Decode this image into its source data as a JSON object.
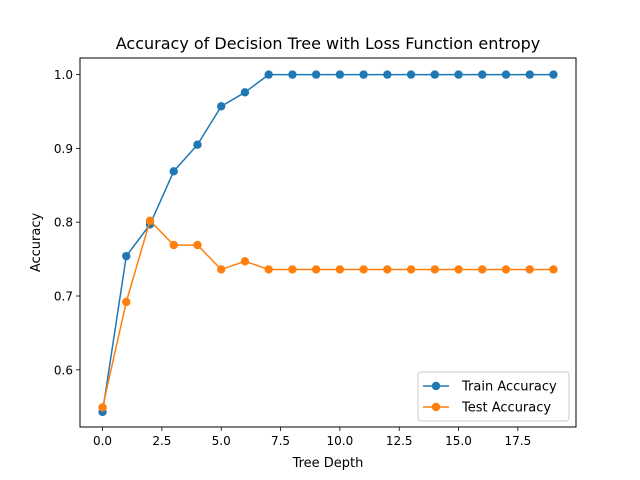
{
  "chart_data": {
    "type": "line",
    "title": "Accuracy of Decision Tree with Loss Function entropy",
    "xlabel": "Tree Depth",
    "ylabel": "Accuracy",
    "xlim": [
      -0.95,
      19.95
    ],
    "ylim": [
      0.5225,
      1.0225
    ],
    "xticks": [
      0.0,
      2.5,
      5.0,
      7.5,
      10.0,
      12.5,
      15.0,
      17.5
    ],
    "xtick_labels": [
      "0.0",
      "2.5",
      "5.0",
      "7.5",
      "10.0",
      "12.5",
      "15.0",
      "17.5"
    ],
    "yticks": [
      0.6,
      0.7,
      0.8,
      0.9,
      1.0
    ],
    "ytick_labels": [
      "0.6",
      "0.7",
      "0.8",
      "0.9",
      "1.0"
    ],
    "grid": false,
    "legend_position": "lower-right",
    "x": [
      0,
      1,
      2,
      3,
      4,
      5,
      6,
      7,
      8,
      9,
      10,
      11,
      12,
      13,
      14,
      15,
      16,
      17,
      18,
      19
    ],
    "series": [
      {
        "name": "Train Accuracy",
        "color": "#1f77b4",
        "marker": "circle",
        "values": [
          0.543,
          0.754,
          0.797,
          0.869,
          0.905,
          0.957,
          0.976,
          1.0,
          1.0,
          1.0,
          1.0,
          1.0,
          1.0,
          1.0,
          1.0,
          1.0,
          1.0,
          1.0,
          1.0,
          1.0
        ]
      },
      {
        "name": "Test Accuracy",
        "color": "#ff7f0e",
        "marker": "circle",
        "values": [
          0.549,
          0.692,
          0.802,
          0.769,
          0.769,
          0.736,
          0.747,
          0.736,
          0.736,
          0.736,
          0.736,
          0.736,
          0.736,
          0.736,
          0.736,
          0.736,
          0.736,
          0.736,
          0.736,
          0.736
        ]
      }
    ]
  }
}
